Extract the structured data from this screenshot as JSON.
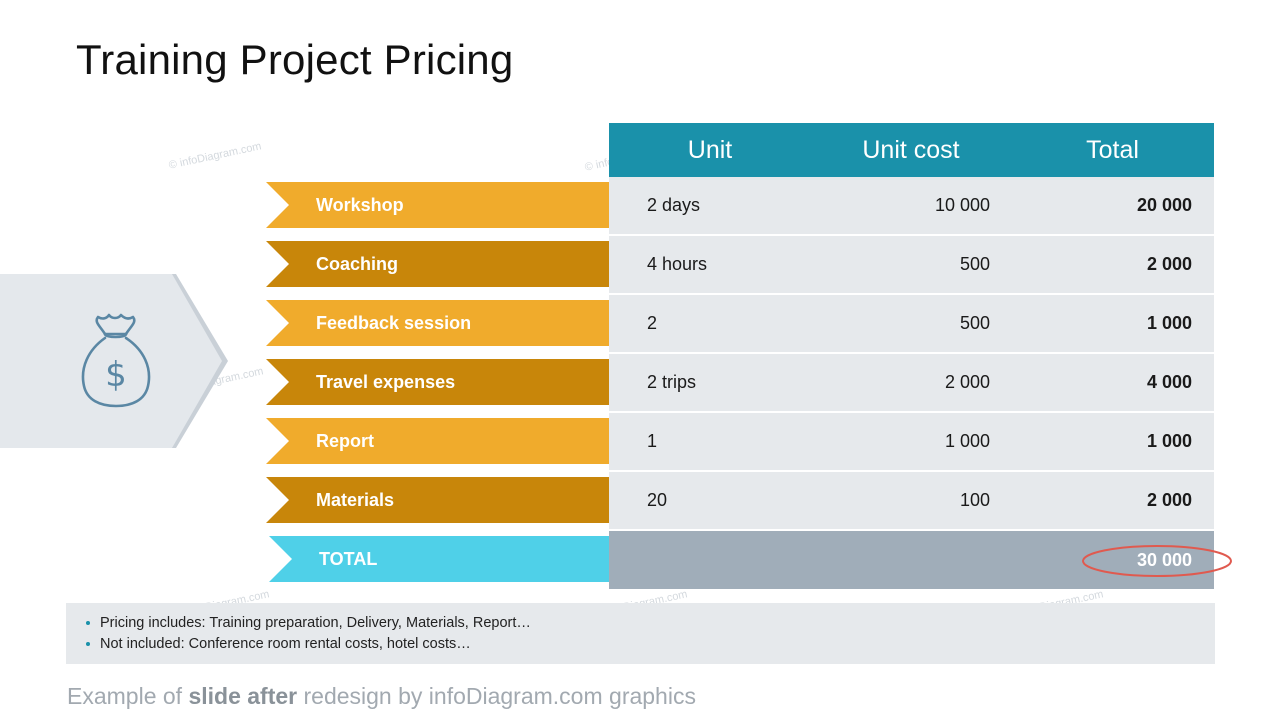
{
  "slide": {
    "title": "Training Project Pricing"
  },
  "watermark": {
    "text": "© infoDiagram.com"
  },
  "icon": {
    "name": "money-bag-icon",
    "symbol": "$",
    "color": "#5a87a4"
  },
  "table": {
    "headers": {
      "unit": "Unit",
      "unit_cost": "Unit cost",
      "total": "Total"
    },
    "rows": [
      {
        "label": "Workshop",
        "unit": "2 days",
        "unit_cost": "10 000",
        "total": "20 000"
      },
      {
        "label": "Coaching",
        "unit": "4 hours",
        "unit_cost": "500",
        "total": "2 000"
      },
      {
        "label": "Feedback session",
        "unit": "2",
        "unit_cost": "500",
        "total": "1 000"
      },
      {
        "label": "Travel expenses",
        "unit": "2 trips",
        "unit_cost": "2 000",
        "total": "4 000"
      },
      {
        "label": "Report",
        "unit": "1",
        "unit_cost": "1 000",
        "total": "1 000"
      },
      {
        "label": "Materials",
        "unit": "20",
        "unit_cost": "100",
        "total": "2 000"
      }
    ],
    "total_row": {
      "label": "TOTAL",
      "total": "30 000"
    }
  },
  "notes": [
    "Pricing includes: Training preparation, Delivery, Materials, Report…",
    "Not included: Conference  room rental costs, hotel costs…"
  ],
  "footer": {
    "prefix": "Example of ",
    "bold": "slide after",
    "suffix": " redesign by infoDiagram.com graphics"
  },
  "colors": {
    "header_teal": "#1a91aa",
    "label_light_orange": "#f0ab2c",
    "label_dark_orange": "#c8860a",
    "total_cyan": "#4fd0e8",
    "row_gray": "#e6e9ec",
    "total_row_gray": "#a0adb9",
    "highlight_circle": "#e05a4f"
  }
}
